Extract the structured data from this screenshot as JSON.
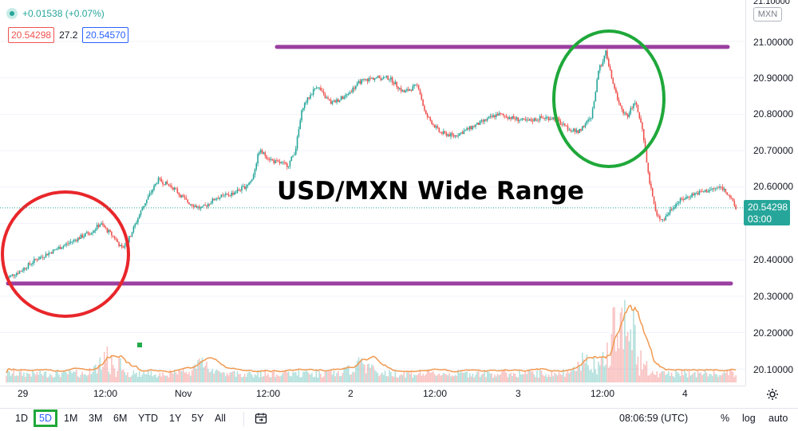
{
  "legend": {
    "change": "+0.01538 (+0.07%)",
    "bid": "20.54298",
    "spread": "27.2",
    "ask": "20.54570"
  },
  "overlay": {
    "title": "USD/MXN Wide Range"
  },
  "price_axis": {
    "top_tick": "21.10000",
    "currency": "MXN",
    "labels": [
      "21.00000",
      "20.90000",
      "20.80000",
      "20.70000",
      "20.60000",
      "20.40000",
      "20.30000",
      "20.20000",
      "20.10000"
    ],
    "current_price": "20.54298",
    "countdown": "03:00"
  },
  "time_axis": {
    "labels": [
      "29",
      "12:00",
      "Nov",
      "12:00",
      "2",
      "12:00",
      "3",
      "12:00",
      "4"
    ]
  },
  "toolbar": {
    "ranges": [
      "1D",
      "5D",
      "1M",
      "3M",
      "6M",
      "YTD",
      "1Y",
      "5Y",
      "All"
    ],
    "active_range": "5D",
    "clock": "08:06:59 (UTC)",
    "percent": "%",
    "log": "log",
    "auto": "auto"
  },
  "colors": {
    "up": "#26a69a",
    "down": "#ef5350",
    "range_lines": "#9b3fa0",
    "circle_left": "#e8272b",
    "circle_right": "#1fa83a",
    "volume_ma": "#f19a52"
  },
  "chart_data": {
    "type": "line",
    "title": "USD/MXN Wide Range",
    "x": [
      "29",
      "12:00",
      "Nov",
      "12:00",
      "2",
      "12:00",
      "3",
      "12:00",
      "4"
    ],
    "series": [
      {
        "name": "",
        "points": [
          [
            0,
            20.35
          ],
          [
            2,
            20.37
          ],
          [
            4,
            20.4
          ],
          [
            6,
            20.42
          ],
          [
            8,
            20.44
          ],
          [
            10,
            20.46
          ],
          [
            12,
            20.48
          ],
          [
            13,
            20.5
          ],
          [
            14,
            20.48
          ],
          [
            15,
            20.46
          ],
          [
            16,
            20.43
          ],
          [
            17,
            20.46
          ],
          [
            19,
            20.55
          ],
          [
            21,
            20.62
          ],
          [
            23,
            20.6
          ],
          [
            25,
            20.56
          ],
          [
            27,
            20.54
          ],
          [
            29,
            20.57
          ],
          [
            31,
            20.58
          ],
          [
            33,
            20.6
          ],
          [
            34,
            20.62
          ],
          [
            35,
            20.7
          ],
          [
            37,
            20.67
          ],
          [
            39,
            20.66
          ],
          [
            40,
            20.7
          ],
          [
            41,
            20.82
          ],
          [
            43,
            20.88
          ],
          [
            44,
            20.85
          ],
          [
            45,
            20.83
          ],
          [
            47,
            20.85
          ],
          [
            49,
            20.89
          ],
          [
            51,
            20.9
          ],
          [
            53,
            20.9
          ],
          [
            55,
            20.86
          ],
          [
            57,
            20.88
          ],
          [
            58,
            20.8
          ],
          [
            60,
            20.75
          ],
          [
            62,
            20.74
          ],
          [
            64,
            20.76
          ],
          [
            66,
            20.78
          ],
          [
            68,
            20.8
          ],
          [
            70,
            20.79
          ],
          [
            72,
            20.78
          ],
          [
            74,
            20.79
          ],
          [
            76,
            20.79
          ],
          [
            77,
            20.77
          ],
          [
            78,
            20.76
          ],
          [
            79,
            20.75
          ],
          [
            80,
            20.77
          ],
          [
            81,
            20.79
          ],
          [
            82,
            20.92
          ],
          [
            83,
            20.97
          ],
          [
            84,
            20.88
          ],
          [
            85,
            20.82
          ],
          [
            86,
            20.79
          ],
          [
            87,
            20.84
          ],
          [
            88,
            20.76
          ],
          [
            89,
            20.62
          ],
          [
            90,
            20.52
          ],
          [
            91,
            20.51
          ],
          [
            92,
            20.54
          ],
          [
            93,
            20.56
          ],
          [
            95,
            20.58
          ],
          [
            97,
            20.59
          ],
          [
            99,
            20.6
          ],
          [
            100,
            20.58
          ],
          [
            101,
            20.54
          ]
        ]
      }
    ],
    "range_lines": [
      20.985,
      20.335
    ],
    "ylim": [
      20.08,
      21.1
    ],
    "xlabel": "",
    "ylabel": "",
    "grid": true
  }
}
